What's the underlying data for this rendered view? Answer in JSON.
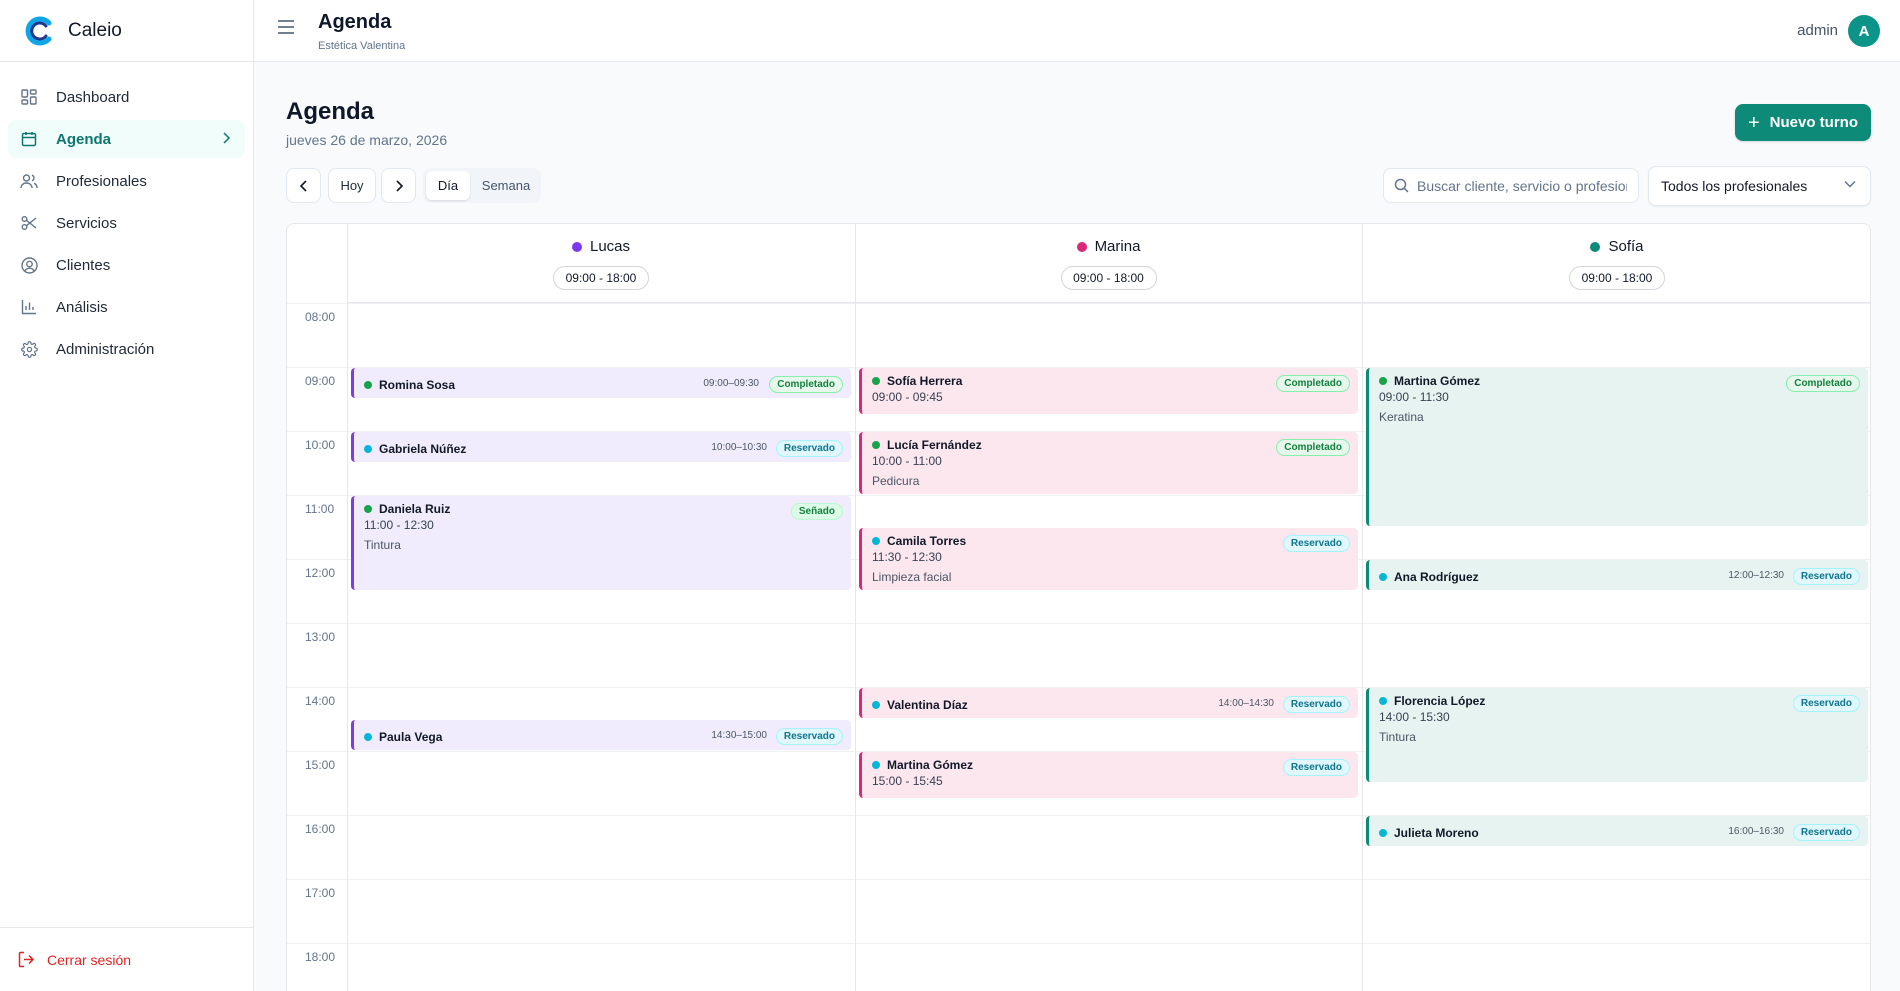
{
  "app": {
    "name": "Caleio"
  },
  "sidebar": {
    "items": [
      {
        "label": "Dashboard",
        "icon": "dashboard-icon"
      },
      {
        "label": "Agenda",
        "icon": "calendar-icon",
        "active": true
      },
      {
        "label": "Profesionales",
        "icon": "users-icon"
      },
      {
        "label": "Servicios",
        "icon": "scissors-icon"
      },
      {
        "label": "Clientes",
        "icon": "user-circle-icon"
      },
      {
        "label": "Análisis",
        "icon": "bar-chart-icon"
      },
      {
        "label": "Administración",
        "icon": "gear-icon"
      }
    ],
    "logout_label": "Cerrar sesión"
  },
  "header": {
    "title": "Agenda",
    "subtitle": "Estética Valentina",
    "user_name": "admin",
    "avatar_initial": "A"
  },
  "page": {
    "title": "Agenda",
    "date": "jueves 26 de marzo, 2026",
    "new_button_label": "Nuevo turno"
  },
  "toolbar": {
    "today_label": "Hoy",
    "view_day_label": "Día",
    "view_week_label": "Semana",
    "active_view": "Día",
    "search_placeholder": "Buscar cliente, servicio o profesional...",
    "professional_filter": "Todos los profesionales"
  },
  "calendar": {
    "hours": [
      "08:00",
      "09:00",
      "10:00",
      "11:00",
      "12:00",
      "13:00",
      "14:00",
      "15:00",
      "16:00",
      "17:00",
      "18:00"
    ],
    "professionals": [
      {
        "id": "lucas",
        "name": "Lucas",
        "hours": "09:00 - 18:00",
        "color": "#7c3aed"
      },
      {
        "id": "marina",
        "name": "Marina",
        "hours": "09:00 - 18:00",
        "color": "#db2777"
      },
      {
        "id": "sofia",
        "name": "Sofía",
        "hours": "09:00 - 18:00",
        "color": "#0d8a78"
      }
    ],
    "status_colors": {
      "Completado": "#16a34a",
      "Reservado": "#06b6d4",
      "Señado": "#16a34a"
    },
    "appointments": {
      "lucas": [
        {
          "client": "Romina Sosa",
          "time": "09:00–09:30",
          "status": "Completado"
        },
        {
          "client": "Gabriela Núñez",
          "time": "10:00–10:30",
          "status": "Reservado"
        },
        {
          "client": "Daniela Ruiz",
          "time": "11:00 - 12:30",
          "service": "Tintura",
          "status": "Señado"
        },
        {
          "client": "Paula Vega",
          "time": "14:30–15:00",
          "status": "Reservado"
        }
      ],
      "marina": [
        {
          "client": "Sofía Herrera",
          "time": "09:00 - 09:45",
          "status": "Completado"
        },
        {
          "client": "Lucía Fernández",
          "time": "10:00 - 11:00",
          "service": "Pedicura",
          "status": "Completado"
        },
        {
          "client": "Camila Torres",
          "time": "11:30 - 12:30",
          "service": "Limpieza facial",
          "status": "Reservado"
        },
        {
          "client": "Valentina Díaz",
          "time": "14:00–14:30",
          "status": "Reservado"
        },
        {
          "client": "Martina Gómez",
          "time": "15:00 - 15:45",
          "status": "Reservado"
        }
      ],
      "sofia": [
        {
          "client": "Martina Gómez",
          "time": "09:00 - 11:30",
          "service": "Keratina",
          "status": "Completado"
        },
        {
          "client": "Ana Rodríguez",
          "time": "12:00–12:30",
          "status": "Reservado"
        },
        {
          "client": "Florencia López",
          "time": "14:00 - 15:30",
          "service": "Tintura",
          "status": "Reservado"
        },
        {
          "client": "Julieta Moreno",
          "time": "16:00–16:30",
          "status": "Reservado"
        }
      ]
    }
  }
}
